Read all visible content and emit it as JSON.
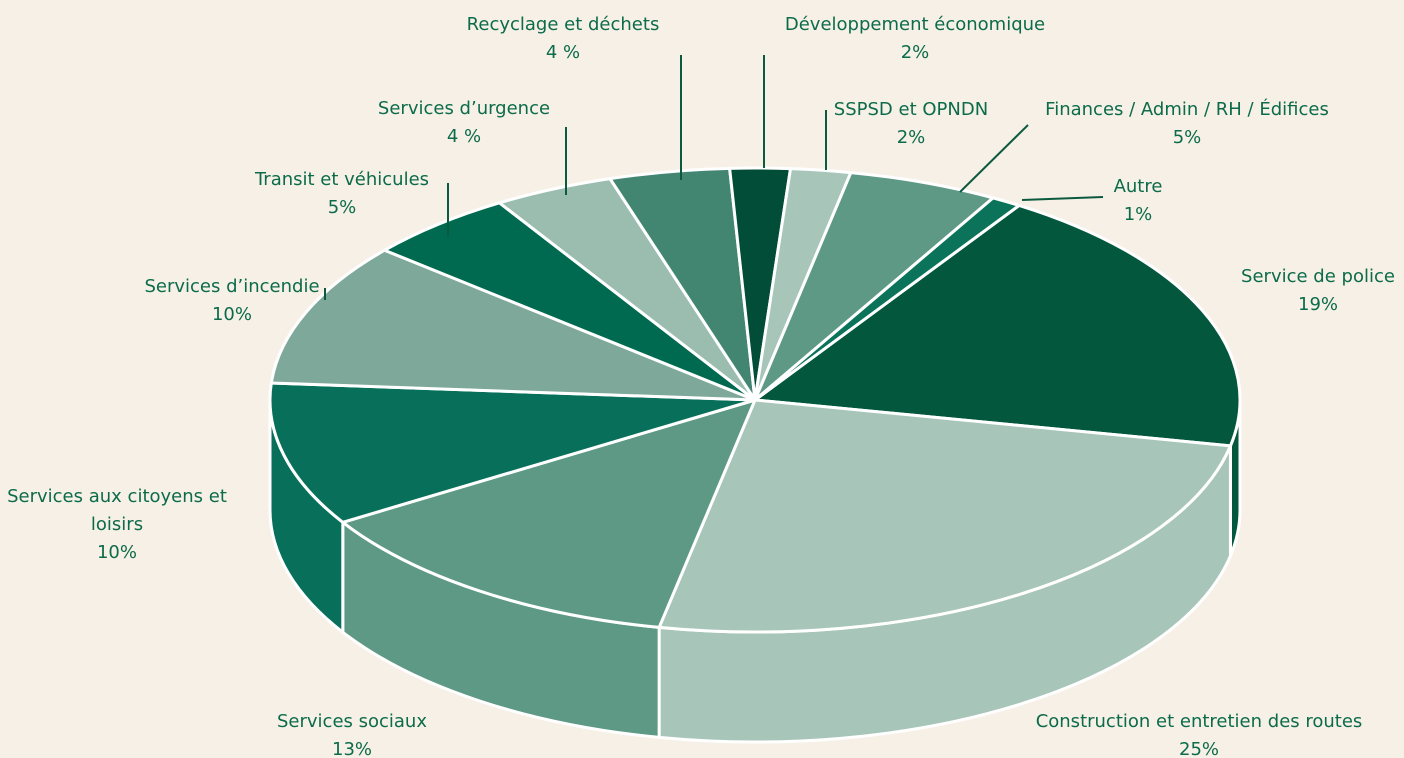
{
  "chart_data": {
    "type": "pie",
    "categories": [
      "Service de police",
      "Construction et entretien des routes",
      "Services sociaux",
      "Services aux citoyens et loisirs",
      "Services d’incendie",
      "Transit et véhicules",
      "Services d’urgence",
      "Recyclage et déchets",
      "Développement économique",
      "SSPSD et OPNDN",
      "Finances / Admin / RH / Édifices",
      "Autre"
    ],
    "values": [
      19,
      25,
      13,
      10,
      10,
      5,
      4,
      4,
      2,
      2,
      5,
      1
    ],
    "value_labels": [
      "19%",
      "25%",
      "13%",
      "10%",
      "10%",
      "5%",
      "4 %",
      "4 %",
      "2%",
      "2%",
      "5%",
      "1%"
    ],
    "colors": [
      "#02573d",
      "#a7c5b9",
      "#5e9986",
      "#08705a",
      "#7ea99a",
      "#006a50",
      "#9abdb0",
      "#428672",
      "#024d37",
      "#a7c5b9",
      "#5e9986",
      "#0a7359"
    ]
  }
}
